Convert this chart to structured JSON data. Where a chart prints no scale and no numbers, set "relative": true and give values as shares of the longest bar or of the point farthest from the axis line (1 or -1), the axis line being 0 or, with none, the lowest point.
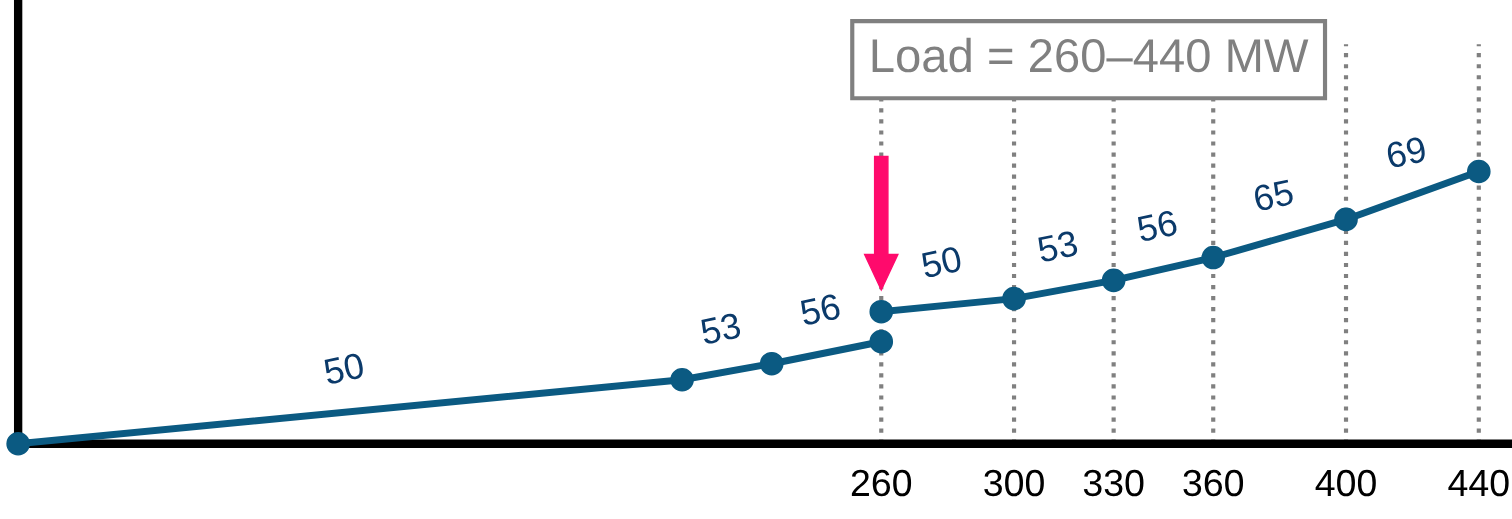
{
  "chart_data": {
    "type": "line",
    "relative": true,
    "xlim": [
      0,
      450
    ],
    "xticks": [
      260,
      300,
      330,
      360,
      400,
      440
    ],
    "marker": "circle",
    "line_style": "solid",
    "grid": false,
    "series": [
      {
        "color": "#0b5a82",
        "x": [
          0,
          200,
          227,
          260
        ],
        "values": [
          0,
          0.235,
          0.294,
          0.375
        ]
      },
      {
        "color": "#0b5a82",
        "x": [
          260,
          300,
          330,
          360,
          400,
          440
        ],
        "values": [
          0.485,
          0.533,
          0.6,
          0.684,
          0.824,
          1
        ]
      }
    ],
    "ref_lines": [
      {
        "axis": "x",
        "value": 260,
        "color": "#808080",
        "line_style": "dotted"
      },
      {
        "axis": "x",
        "value": 300,
        "color": "#808080",
        "line_style": "dotted"
      },
      {
        "axis": "x",
        "value": 330,
        "color": "#808080",
        "line_style": "dotted"
      },
      {
        "axis": "x",
        "value": 360,
        "color": "#808080",
        "line_style": "dotted"
      },
      {
        "axis": "x",
        "value": 400,
        "color": "#808080",
        "line_style": "dotted"
      },
      {
        "axis": "x",
        "value": 440,
        "color": "#808080",
        "line_style": "dotted"
      }
    ],
    "annotations": [
      "50",
      "53",
      "56",
      "50",
      "53",
      "56",
      "65",
      "69",
      "Load = 260–440 MW"
    ]
  }
}
